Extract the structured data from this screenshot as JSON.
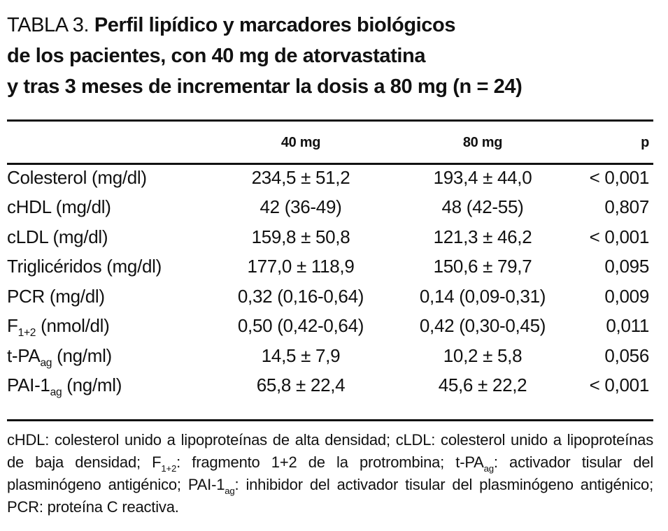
{
  "title": {
    "label": "TABLA 3.",
    "lines": [
      "Perfil lipídico y marcadores biológicos",
      "de los pacientes, con 40 mg de atorvastatina",
      "y tras 3 meses de incrementar la dosis a 80 mg (n = 24)"
    ]
  },
  "table": {
    "columns": [
      "40 mg",
      "80 mg",
      "p"
    ],
    "rows": [
      {
        "label": [
          {
            "text": "Colesterol (mg/dl)"
          }
        ],
        "cells": [
          "234,5 ± 51,2",
          "193,4 ± 44,0",
          "< 0,001"
        ]
      },
      {
        "label": [
          {
            "text": "cHDL (mg/dl)"
          }
        ],
        "cells": [
          "42 (36-49)",
          "48 (42-55)",
          "0,807"
        ]
      },
      {
        "label": [
          {
            "text": "cLDL (mg/dl)"
          }
        ],
        "cells": [
          "159,8 ± 50,8",
          "121,3 ± 46,2",
          "< 0,001"
        ]
      },
      {
        "label": [
          {
            "text": "Triglicéridos (mg/dl)"
          }
        ],
        "cells": [
          "177,0 ± 118,9",
          "150,6 ± 79,7",
          "0,095"
        ]
      },
      {
        "label": [
          {
            "text": "PCR (mg/dl)"
          }
        ],
        "cells": [
          "0,32 (0,16-0,64)",
          "0,14 (0,09-0,31)",
          "0,009"
        ]
      },
      {
        "label": [
          {
            "text": "F"
          },
          {
            "sub": "1+2"
          },
          {
            "text": " (nmol/dl)"
          }
        ],
        "cells": [
          "0,50 (0,42-0,64)",
          "0,42 (0,30-0,45)",
          "0,011"
        ]
      },
      {
        "label": [
          {
            "text": "t-PA"
          },
          {
            "sub": "ag"
          },
          {
            "text": " (ng/ml)"
          }
        ],
        "cells": [
          "14,5 ± 7,9",
          "10,2 ± 5,8",
          "0,056"
        ]
      },
      {
        "label": [
          {
            "text": "PAI-1"
          },
          {
            "sub": "ag"
          },
          {
            "text": " (ng/ml)"
          }
        ],
        "cells": [
          "65,8 ± 22,4",
          "45,6 ± 22,2",
          "< 0,001"
        ]
      }
    ]
  },
  "footnote": [
    {
      "text": "cHDL: colesterol unido a lipoproteínas de alta densidad; cLDL: colesterol unido a lipoproteínas de baja densidad; F"
    },
    {
      "sub": "1+2"
    },
    {
      "text": ": fragmento 1+2 de la protrombina; t-PA"
    },
    {
      "sub": "ag"
    },
    {
      "text": ": activador tisular del plasminógeno antigénico; PAI-1"
    },
    {
      "sub": "ag"
    },
    {
      "text": ": inhibidor del activador tisular del plasminógeno antigénico; PCR: proteína C reactiva."
    }
  ]
}
